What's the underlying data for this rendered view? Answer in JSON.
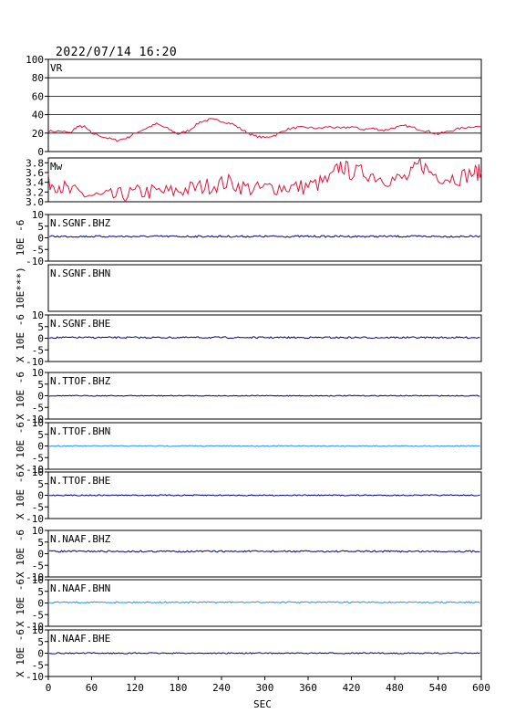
{
  "header": {
    "timestamp": "2022/07/14 16:20"
  },
  "chart_data": {
    "type": "line",
    "xlabel": "SEC",
    "xlim": [
      0,
      600
    ],
    "xticks": [
      0,
      60,
      120,
      180,
      240,
      300,
      360,
      420,
      480,
      540,
      600
    ],
    "panels": [
      {
        "name": "VR",
        "label": "VR",
        "ylim": [
          0,
          100
        ],
        "yticks": [
          0,
          20,
          40,
          60,
          80,
          100
        ],
        "grid": true,
        "color": "#e0163c",
        "series": [
          {
            "x": 0,
            "y": 22
          },
          {
            "x": 20,
            "y": 22
          },
          {
            "x": 30,
            "y": 20
          },
          {
            "x": 40,
            "y": 27
          },
          {
            "x": 50,
            "y": 27
          },
          {
            "x": 60,
            "y": 20
          },
          {
            "x": 80,
            "y": 15
          },
          {
            "x": 95,
            "y": 12
          },
          {
            "x": 110,
            "y": 15
          },
          {
            "x": 120,
            "y": 20
          },
          {
            "x": 135,
            "y": 25
          },
          {
            "x": 150,
            "y": 30
          },
          {
            "x": 165,
            "y": 25
          },
          {
            "x": 180,
            "y": 19
          },
          {
            "x": 195,
            "y": 23
          },
          {
            "x": 210,
            "y": 32
          },
          {
            "x": 225,
            "y": 35
          },
          {
            "x": 240,
            "y": 33
          },
          {
            "x": 255,
            "y": 30
          },
          {
            "x": 270,
            "y": 23
          },
          {
            "x": 285,
            "y": 17
          },
          {
            "x": 300,
            "y": 15
          },
          {
            "x": 315,
            "y": 18
          },
          {
            "x": 330,
            "y": 24
          },
          {
            "x": 345,
            "y": 26
          },
          {
            "x": 360,
            "y": 26
          },
          {
            "x": 375,
            "y": 25
          },
          {
            "x": 390,
            "y": 27
          },
          {
            "x": 405,
            "y": 25
          },
          {
            "x": 420,
            "y": 27
          },
          {
            "x": 435,
            "y": 24
          },
          {
            "x": 450,
            "y": 25
          },
          {
            "x": 465,
            "y": 23
          },
          {
            "x": 480,
            "y": 26
          },
          {
            "x": 495,
            "y": 28
          },
          {
            "x": 510,
            "y": 25
          },
          {
            "x": 525,
            "y": 22
          },
          {
            "x": 540,
            "y": 19
          },
          {
            "x": 555,
            "y": 22
          },
          {
            "x": 570,
            "y": 25
          },
          {
            "x": 585,
            "y": 27
          },
          {
            "x": 600,
            "y": 27
          }
        ]
      },
      {
        "name": "Mw",
        "label": "Mw",
        "ylim": [
          3.0,
          3.9
        ],
        "yticks": [
          3.0,
          3.2,
          3.4,
          3.6,
          3.8
        ],
        "grid": false,
        "color": "#e0163c",
        "series": [
          {
            "x": 0,
            "y": 3.4
          },
          {
            "x": 15,
            "y": 3.35
          },
          {
            "x": 30,
            "y": 3.2
          },
          {
            "x": 50,
            "y": 3.15
          },
          {
            "x": 70,
            "y": 3.1
          },
          {
            "x": 90,
            "y": 3.1
          },
          {
            "x": 110,
            "y": 3.15
          },
          {
            "x": 130,
            "y": 3.2
          },
          {
            "x": 150,
            "y": 3.2
          },
          {
            "x": 170,
            "y": 3.2
          },
          {
            "x": 190,
            "y": 3.25
          },
          {
            "x": 210,
            "y": 3.3
          },
          {
            "x": 230,
            "y": 3.35
          },
          {
            "x": 250,
            "y": 3.4
          },
          {
            "x": 270,
            "y": 3.3
          },
          {
            "x": 290,
            "y": 3.25
          },
          {
            "x": 310,
            "y": 3.3
          },
          {
            "x": 330,
            "y": 3.3
          },
          {
            "x": 350,
            "y": 3.3
          },
          {
            "x": 370,
            "y": 3.35
          },
          {
            "x": 390,
            "y": 3.45
          },
          {
            "x": 405,
            "y": 3.75
          },
          {
            "x": 420,
            "y": 3.6
          },
          {
            "x": 440,
            "y": 3.6
          },
          {
            "x": 460,
            "y": 3.5
          },
          {
            "x": 480,
            "y": 3.45
          },
          {
            "x": 500,
            "y": 3.5
          },
          {
            "x": 515,
            "y": 3.8
          },
          {
            "x": 530,
            "y": 3.6
          },
          {
            "x": 550,
            "y": 3.5
          },
          {
            "x": 570,
            "y": 3.5
          },
          {
            "x": 590,
            "y": 3.6
          },
          {
            "x": 600,
            "y": 3.6
          }
        ]
      },
      {
        "name": "N.SGNF.BHZ",
        "label": "N.SGNF.BHZ",
        "ylim": [
          -10,
          10
        ],
        "yticks": [
          -10,
          -5,
          0,
          5,
          10
        ],
        "ylabel": "10E -6",
        "color": "#00008b",
        "level": 0.6,
        "noise": 0.4
      },
      {
        "name": "N.SGNF.BHN",
        "label": "N.SGNF.BHN",
        "ylabel": "10E***)",
        "empty": true
      },
      {
        "name": "N.SGNF.BHE",
        "label": "N.SGNF.BHE",
        "ylim": [
          -10,
          10
        ],
        "yticks": [
          -10,
          -5,
          0,
          5,
          10
        ],
        "ylabel": "X 10E -6",
        "color": "#00008b",
        "level": 0.3,
        "noise": 0.35
      },
      {
        "name": "N.TTOF.BHZ",
        "label": "N.TTOF.BHZ",
        "ylim": [
          -10,
          10
        ],
        "yticks": [
          -10,
          -5,
          0,
          5,
          10
        ],
        "ylabel": "X 10E -6",
        "color": "#00008b",
        "level": 0.0,
        "noise": 0.2
      },
      {
        "name": "N.TTOF.BHN",
        "label": "N.TTOF.BHN",
        "ylim": [
          -10,
          10
        ],
        "yticks": [
          -10,
          -5,
          0,
          5,
          10
        ],
        "ylabel": "X 10E -6",
        "color": "#1e90ff",
        "level": 0.0,
        "noise": 0.2
      },
      {
        "name": "N.TTOF.BHE",
        "label": "N.TTOF.BHE",
        "ylim": [
          -10,
          10
        ],
        "yticks": [
          -10,
          -5,
          0,
          5,
          10
        ],
        "ylabel": "X 10E -6",
        "color": "#00008b",
        "level": 0.0,
        "noise": 0.25
      },
      {
        "name": "N.NAAF.BHZ",
        "label": "N.NAAF.BHZ",
        "ylim": [
          -10,
          10
        ],
        "yticks": [
          -10,
          -5,
          0,
          5,
          10
        ],
        "ylabel": "X 10E -6",
        "color": "#00008b",
        "level": 1.0,
        "noise": 0.35
      },
      {
        "name": "N.NAAF.BHN",
        "label": "N.NAAF.BHN",
        "ylim": [
          -10,
          10
        ],
        "yticks": [
          -10,
          -5,
          0,
          5,
          10
        ],
        "ylabel": "X 10E -6",
        "color": "#1e90ff",
        "level": 0.3,
        "noise": 0.3
      },
      {
        "name": "N.NAAF.BHE",
        "label": "N.NAAF.BHE",
        "ylim": [
          -10,
          10
        ],
        "yticks": [
          -10,
          -5,
          0,
          5,
          10
        ],
        "ylabel": "X 10E -6",
        "color": "#00008b",
        "level": 0.0,
        "noise": 0.25
      }
    ]
  }
}
